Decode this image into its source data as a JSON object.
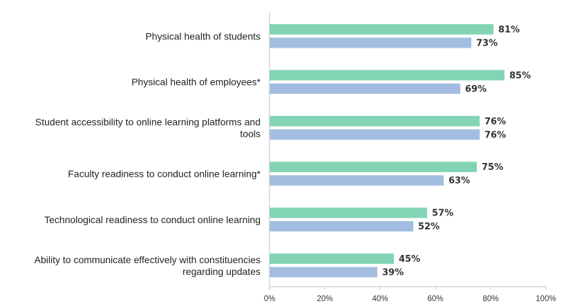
{
  "chart_data": {
    "type": "bar",
    "orientation": "horizontal",
    "categories": [
      [
        "Physical health of students"
      ],
      [
        "Physical health of employees*"
      ],
      [
        "Student accessibility to online learning platforms and",
        "tools"
      ],
      [
        "Faculty readiness to conduct online learning*"
      ],
      [
        "Technological readiness to conduct online learning"
      ],
      [
        "Ability to communicate effectively with constituencies",
        "regarding updates"
      ]
    ],
    "series": [
      {
        "values": [
          81,
          85,
          76,
          75,
          57,
          45
        ],
        "color": "#82D4B5"
      },
      {
        "values": [
          73,
          69,
          76,
          63,
          52,
          39
        ],
        "color": "#A3BDE1"
      }
    ],
    "value_suffix": "%",
    "xlim": [
      0,
      100
    ],
    "xticks": [
      0,
      20,
      40,
      60,
      80,
      100
    ],
    "xtick_labels": [
      "0%",
      "20%",
      "40%",
      "60%",
      "80%",
      "100%"
    ],
    "title": "",
    "xlabel": "",
    "ylabel": "",
    "grid": false,
    "legend": "none"
  }
}
